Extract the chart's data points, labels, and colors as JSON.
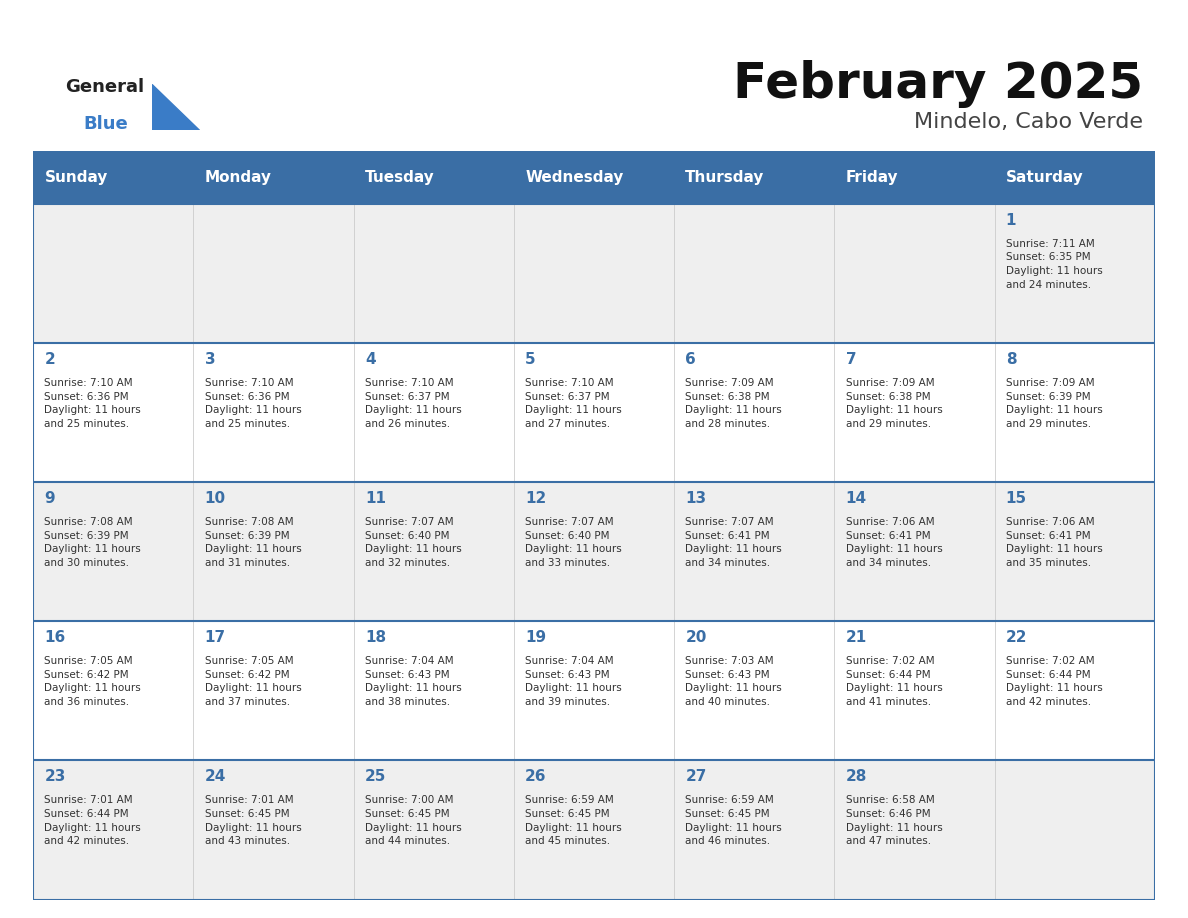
{
  "title": "February 2025",
  "subtitle": "Mindelo, Cabo Verde",
  "days_of_week": [
    "Sunday",
    "Monday",
    "Tuesday",
    "Wednesday",
    "Thursday",
    "Friday",
    "Saturday"
  ],
  "header_bg": "#3A6EA5",
  "header_text": "#FFFFFF",
  "row_bg_odd": "#EFEFEF",
  "row_bg_even": "#FFFFFF",
  "cell_border_color": "#3A6EA5",
  "cell_divider_color": "#CCCCCC",
  "title_color": "#111111",
  "subtitle_color": "#444444",
  "day_number_color": "#3A6EA5",
  "info_color": "#333333",
  "logo_general_color": "#222222",
  "logo_blue_color": "#3A7CC7",
  "logo_triangle_color": "#3A7CC7",
  "calendar_data": [
    [
      null,
      null,
      null,
      null,
      null,
      null,
      1
    ],
    [
      2,
      3,
      4,
      5,
      6,
      7,
      8
    ],
    [
      9,
      10,
      11,
      12,
      13,
      14,
      15
    ],
    [
      16,
      17,
      18,
      19,
      20,
      21,
      22
    ],
    [
      23,
      24,
      25,
      26,
      27,
      28,
      null
    ]
  ],
  "sunrise_data": {
    "1": "Sunrise: 7:11 AM\nSunset: 6:35 PM\nDaylight: 11 hours\nand 24 minutes.",
    "2": "Sunrise: 7:10 AM\nSunset: 6:36 PM\nDaylight: 11 hours\nand 25 minutes.",
    "3": "Sunrise: 7:10 AM\nSunset: 6:36 PM\nDaylight: 11 hours\nand 25 minutes.",
    "4": "Sunrise: 7:10 AM\nSunset: 6:37 PM\nDaylight: 11 hours\nand 26 minutes.",
    "5": "Sunrise: 7:10 AM\nSunset: 6:37 PM\nDaylight: 11 hours\nand 27 minutes.",
    "6": "Sunrise: 7:09 AM\nSunset: 6:38 PM\nDaylight: 11 hours\nand 28 minutes.",
    "7": "Sunrise: 7:09 AM\nSunset: 6:38 PM\nDaylight: 11 hours\nand 29 minutes.",
    "8": "Sunrise: 7:09 AM\nSunset: 6:39 PM\nDaylight: 11 hours\nand 29 minutes.",
    "9": "Sunrise: 7:08 AM\nSunset: 6:39 PM\nDaylight: 11 hours\nand 30 minutes.",
    "10": "Sunrise: 7:08 AM\nSunset: 6:39 PM\nDaylight: 11 hours\nand 31 minutes.",
    "11": "Sunrise: 7:07 AM\nSunset: 6:40 PM\nDaylight: 11 hours\nand 32 minutes.",
    "12": "Sunrise: 7:07 AM\nSunset: 6:40 PM\nDaylight: 11 hours\nand 33 minutes.",
    "13": "Sunrise: 7:07 AM\nSunset: 6:41 PM\nDaylight: 11 hours\nand 34 minutes.",
    "14": "Sunrise: 7:06 AM\nSunset: 6:41 PM\nDaylight: 11 hours\nand 34 minutes.",
    "15": "Sunrise: 7:06 AM\nSunset: 6:41 PM\nDaylight: 11 hours\nand 35 minutes.",
    "16": "Sunrise: 7:05 AM\nSunset: 6:42 PM\nDaylight: 11 hours\nand 36 minutes.",
    "17": "Sunrise: 7:05 AM\nSunset: 6:42 PM\nDaylight: 11 hours\nand 37 minutes.",
    "18": "Sunrise: 7:04 AM\nSunset: 6:43 PM\nDaylight: 11 hours\nand 38 minutes.",
    "19": "Sunrise: 7:04 AM\nSunset: 6:43 PM\nDaylight: 11 hours\nand 39 minutes.",
    "20": "Sunrise: 7:03 AM\nSunset: 6:43 PM\nDaylight: 11 hours\nand 40 minutes.",
    "21": "Sunrise: 7:02 AM\nSunset: 6:44 PM\nDaylight: 11 hours\nand 41 minutes.",
    "22": "Sunrise: 7:02 AM\nSunset: 6:44 PM\nDaylight: 11 hours\nand 42 minutes.",
    "23": "Sunrise: 7:01 AM\nSunset: 6:44 PM\nDaylight: 11 hours\nand 42 minutes.",
    "24": "Sunrise: 7:01 AM\nSunset: 6:45 PM\nDaylight: 11 hours\nand 43 minutes.",
    "25": "Sunrise: 7:00 AM\nSunset: 6:45 PM\nDaylight: 11 hours\nand 44 minutes.",
    "26": "Sunrise: 6:59 AM\nSunset: 6:45 PM\nDaylight: 11 hours\nand 45 minutes.",
    "27": "Sunrise: 6:59 AM\nSunset: 6:45 PM\nDaylight: 11 hours\nand 46 minutes.",
    "28": "Sunrise: 6:58 AM\nSunset: 6:46 PM\nDaylight: 11 hours\nand 47 minutes."
  }
}
